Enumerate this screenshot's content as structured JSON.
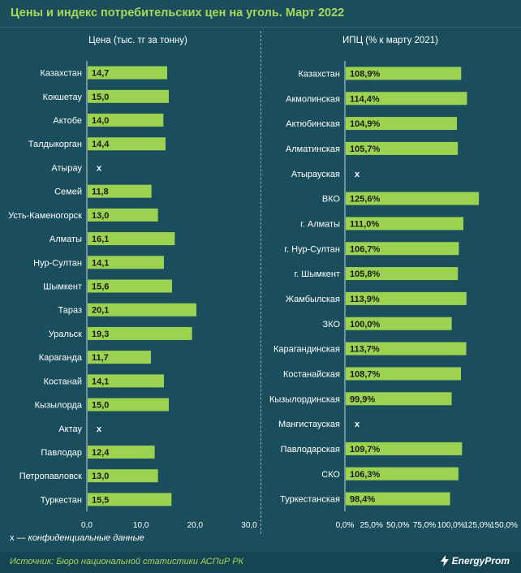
{
  "title": "Цены и индекс потребительских цен на уголь. Март 2022",
  "footnote": {
    "symbol": "x —",
    "text": "конфиденциальные данные"
  },
  "source": "Источник: Бюро национальной статистики АСПиР РК",
  "logo": "EnergyProm",
  "colors": {
    "background": "#1b4e5c",
    "bar": "#9bd250",
    "title": "#a8d85a",
    "text": "#ffffff"
  },
  "chart_data": [
    {
      "type": "bar",
      "orientation": "horizontal",
      "title": "Цена (тыс. тг за тонну)",
      "categories": [
        "Казахстан",
        "Кокшетау",
        "Актобе",
        "Талдыкорган",
        "Атырау",
        "Семей",
        "Усть-Каменогорск",
        "Алматы",
        "Нур-Султан",
        "Шымкент",
        "Тараз",
        "Уральск",
        "Караганда",
        "Костанай",
        "Кызылорда",
        "Актау",
        "Павлодар",
        "Петропавловск",
        "Туркестан"
      ],
      "values": [
        14.7,
        15.0,
        14.0,
        14.4,
        null,
        11.8,
        13.0,
        16.1,
        14.1,
        15.6,
        20.1,
        19.3,
        11.7,
        14.1,
        15.0,
        null,
        12.4,
        13.0,
        15.5
      ],
      "labels": [
        "14,7",
        "15,0",
        "14,0",
        "14,4",
        "x",
        "11,8",
        "13,0",
        "16,1",
        "14,1",
        "15,6",
        "20,1",
        "19,3",
        "11,7",
        "14,1",
        "15,0",
        "x",
        "12,4",
        "13,0",
        "15,5"
      ],
      "xlim": [
        0,
        30
      ],
      "ticks": [
        0,
        10,
        20,
        30
      ],
      "tick_labels": [
        "0,0",
        "10,0",
        "20,0",
        "30,0"
      ]
    },
    {
      "type": "bar",
      "orientation": "horizontal",
      "title": "ИПЦ (% к марту 2021)",
      "categories": [
        "Казахстан",
        "Акмолинская",
        "Актюбинская",
        "Алматинская",
        "Атырауская",
        "ВКО",
        "г. Алматы",
        "г. Нур-Султан",
        "г. Шымкент",
        "Жамбылская",
        "ЗКО",
        "Карагандинская",
        "Костанайская",
        "Кызылординская",
        "Мангистауская",
        "Павлодарская",
        "СКО",
        "Туркестанская"
      ],
      "values": [
        108.9,
        114.4,
        104.9,
        105.7,
        null,
        125.6,
        111.0,
        106.7,
        105.8,
        113.9,
        100.0,
        113.7,
        108.7,
        99.9,
        null,
        109.7,
        106.3,
        98.4
      ],
      "labels": [
        "108,9%",
        "114,4%",
        "104,9%",
        "105,7%",
        "x",
        "125,6%",
        "111,0%",
        "106,7%",
        "105,8%",
        "113,9%",
        "100,0%",
        "113,7%",
        "108,7%",
        "99,9%",
        "x",
        "109,7%",
        "106,3%",
        "98,4%"
      ],
      "xlim": [
        0,
        150
      ],
      "ticks": [
        0,
        25,
        50,
        75,
        100,
        125,
        150
      ],
      "tick_labels": [
        "0,0%",
        "25,0%",
        "50,0%",
        "75,0%",
        "100,0%",
        "125,0%",
        "150,0%"
      ]
    }
  ]
}
